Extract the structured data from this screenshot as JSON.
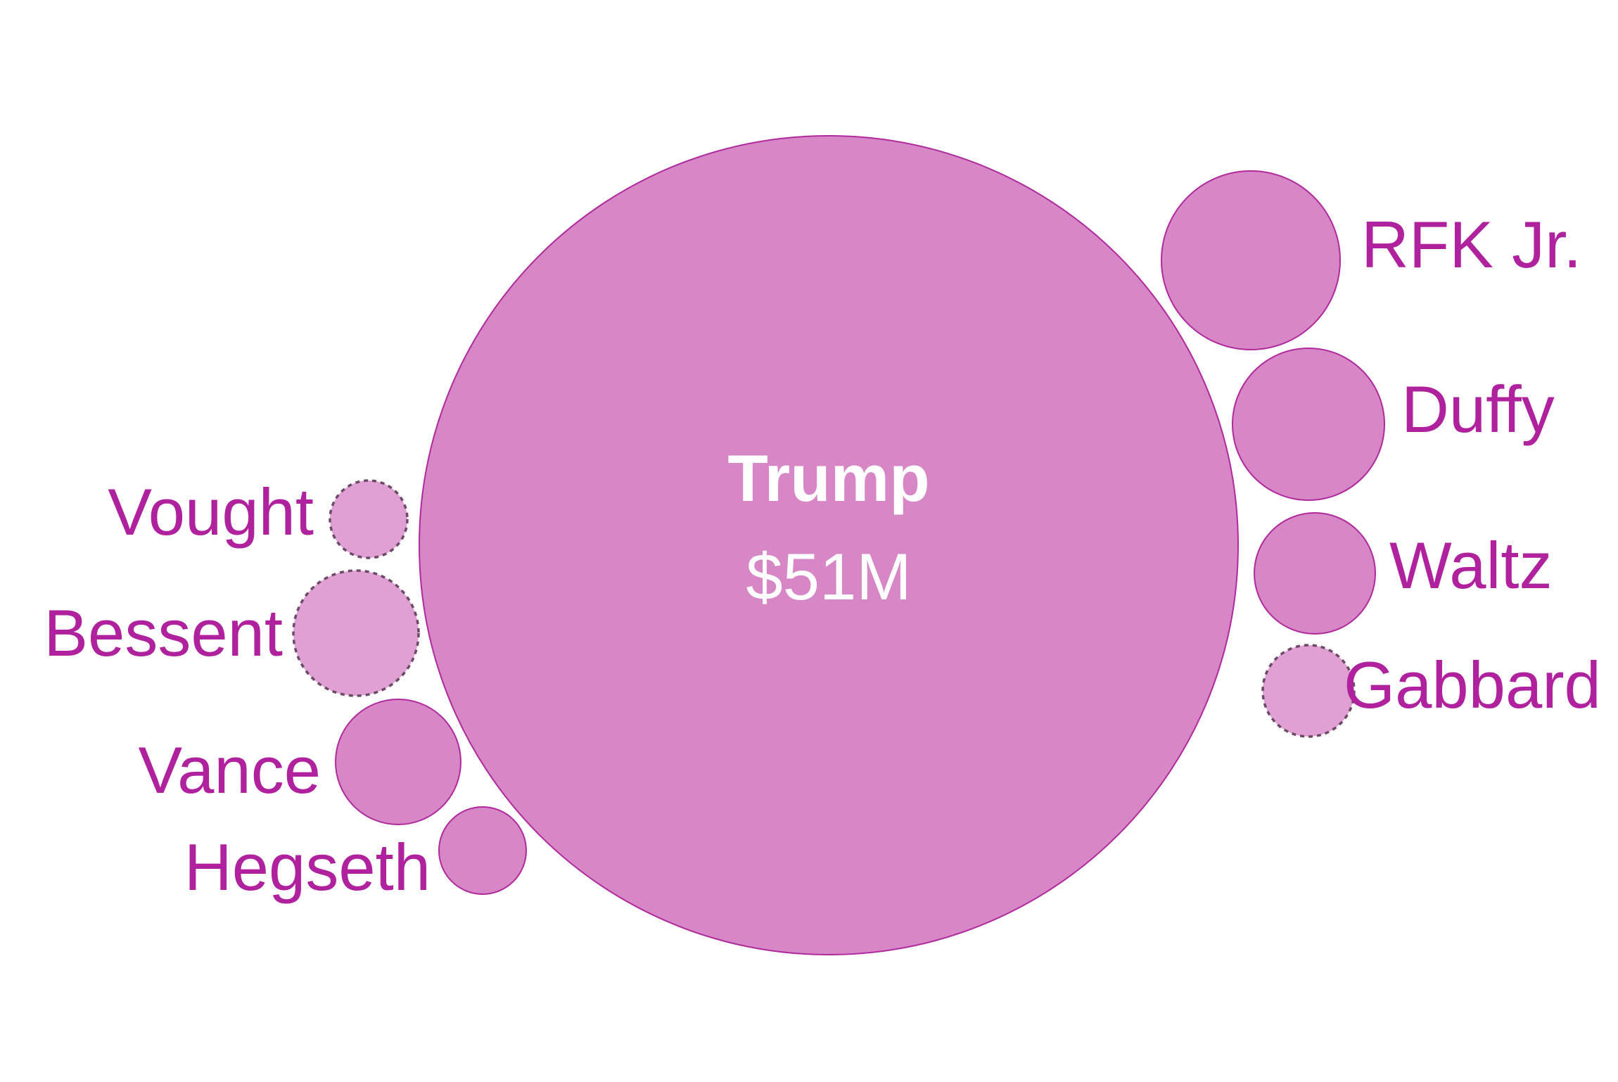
{
  "colors": {
    "background": "#ffffff",
    "bubble_fill": "#d786c6",
    "bubble_fill_light": "#e0a0d4",
    "bubble_stroke": "#b02a9e",
    "dashed_stroke": "#6e4a68",
    "label_color": "#b0219e",
    "center_label_color": "#ffffff"
  },
  "chart_data": {
    "type": "bubble",
    "title": "",
    "main": {
      "name": "Trump",
      "value_label": "$51M",
      "value": 51
    },
    "bubbles": [
      {
        "name": "RFK Jr.",
        "value": 2.4,
        "style": "solid",
        "side": "right"
      },
      {
        "name": "Duffy",
        "value": 1.7,
        "style": "solid",
        "side": "right"
      },
      {
        "name": "Waltz",
        "value": 1.1,
        "style": "solid",
        "side": "right"
      },
      {
        "name": "Gabbard",
        "value": 0.68,
        "style": "dashed",
        "side": "right"
      },
      {
        "name": "Vought",
        "value": 0.45,
        "style": "dashed",
        "side": "left"
      },
      {
        "name": "Bessent",
        "value": 1.2,
        "style": "dashed",
        "side": "left"
      },
      {
        "name": "Vance",
        "value": 1.2,
        "style": "solid",
        "side": "left"
      },
      {
        "name": "Hegseth",
        "value": 0.55,
        "style": "solid",
        "side": "left"
      }
    ]
  }
}
